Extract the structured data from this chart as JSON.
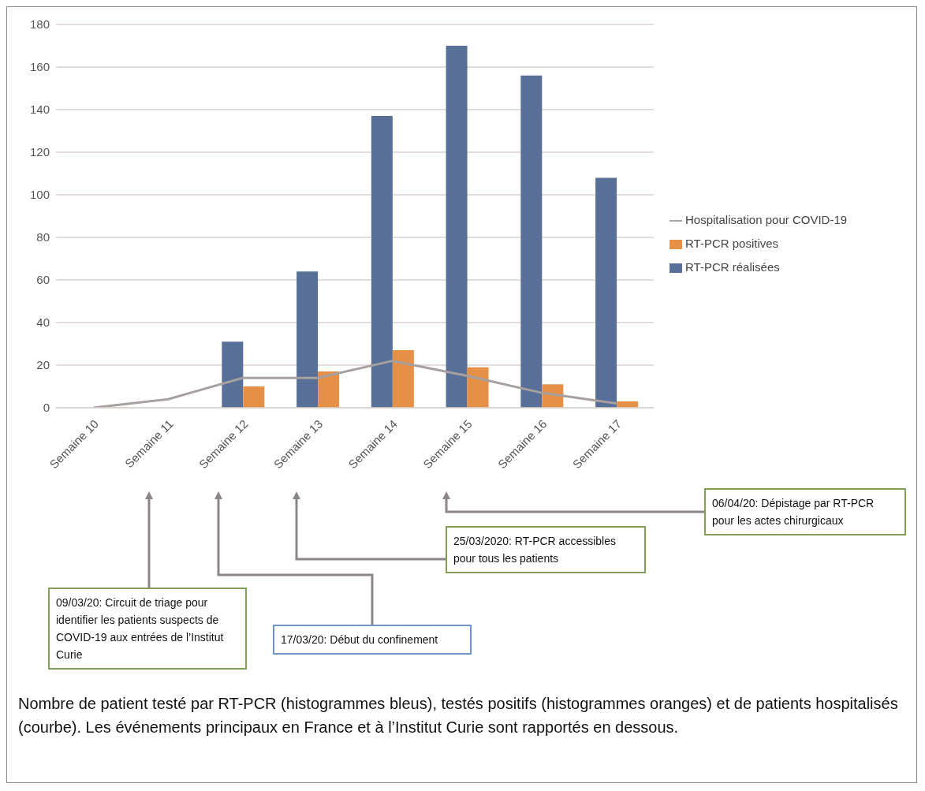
{
  "chart_data": {
    "type": "bar",
    "categories": [
      "Semaine 10",
      "Semaine 11",
      "Semaine 12",
      "Semaine 13",
      "Semaine 14",
      "Semaine 15",
      "Semaine 16",
      "Semaine 17"
    ],
    "series": [
      {
        "name": "RT-PCR réalisées",
        "color": "#587098",
        "values": [
          null,
          null,
          31,
          64,
          137,
          170,
          156,
          108
        ]
      },
      {
        "name": "RT-PCR positives",
        "color": "#e68f46",
        "values": [
          null,
          null,
          10,
          17,
          27,
          19,
          11,
          3
        ]
      },
      {
        "name": "Hospitalisation pour COVID-19",
        "type": "line",
        "color": "#a6a09f",
        "values": [
          0,
          4,
          14,
          14,
          22,
          15,
          7,
          2
        ]
      }
    ],
    "ylim": [
      0,
      180
    ],
    "yticks": [
      0,
      20,
      40,
      60,
      80,
      100,
      120,
      140,
      160,
      180
    ],
    "grid": "y",
    "legend": "right",
    "marker": "none",
    "line_style": "solid",
    "annotations": [
      "09/03/20: Circuit de triage pour identifier les patients suspects de COVID-19 aux entrées de l’Institut Curie",
      "17/03/20: Début du confinement",
      "25/03/2020: RT-PCR accessibles pour tous les patients",
      "06/04/20: Dépistage par RT-PCR pour les actes chirurgicaux",
      "Nombre de patient testé par RT-PCR (histogrammes bleus), testés positifs (histogrammes oranges) et de patients hospitalisés (courbe). Les événements principaux en France et à l’Institut Curie sont rapportés en dessous."
    ]
  }
}
